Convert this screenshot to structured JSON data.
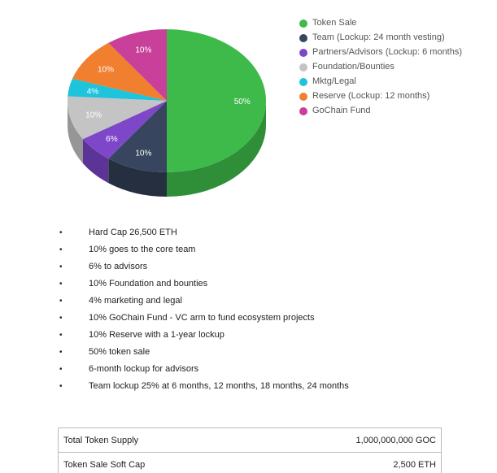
{
  "chart_data": {
    "type": "pie",
    "style": "3d",
    "slices": [
      {
        "name": "Token Sale",
        "value": 50,
        "label": "50%",
        "color": "#3eba4a",
        "side_color": "#2f8f39"
      },
      {
        "name": "Team (Lockup: 24 month vesting)",
        "value": 10,
        "label": "10%",
        "color": "#37455e",
        "side_color": "#262f40"
      },
      {
        "name": "Partners/Advisors (Lockup: 6 months)",
        "value": 6,
        "label": "6%",
        "color": "#7e47c9",
        "side_color": "#5c3396"
      },
      {
        "name": "Foundation/Bounties",
        "value": 10,
        "label": "10%",
        "color": "#c4c4c4",
        "side_color": "#969696"
      },
      {
        "name": "Mktg/Legal",
        "value": 4,
        "label": "4%",
        "color": "#1ec3dc",
        "side_color": "#1693a6"
      },
      {
        "name": "Reserve (Lockup: 12 months)",
        "value": 10,
        "label": "10%",
        "color": "#f07f30",
        "side_color": "#b55f24"
      },
      {
        "name": "GoChain Fund",
        "value": 10,
        "label": "10%",
        "color": "#c8409a",
        "side_color": "#932f71"
      }
    ],
    "legend_position": "right"
  },
  "legend": [
    {
      "label": "Token Sale",
      "color": "#3eba4a"
    },
    {
      "label": "Team (Lockup: 24 month vesting)",
      "color": "#37455e"
    },
    {
      "label": "Partners/Advisors (Lockup: 6 months)",
      "color": "#7e47c9"
    },
    {
      "label": "Foundation/Bounties",
      "color": "#c4c4c4"
    },
    {
      "label": "Mktg/Legal",
      "color": "#1ec3dc"
    },
    {
      "label": "Reserve (Lockup: 12 months)",
      "color": "#f07f30"
    },
    {
      "label": "GoChain Fund",
      "color": "#c8409a"
    }
  ],
  "bullets": {
    "marker": "•",
    "items": [
      "Hard Cap 26,500 ETH",
      "10% goes to the core team",
      "6% to advisors",
      "10% Foundation and bounties",
      "4% marketing and legal",
      "10% GoChain Fund - VC arm to fund ecosystem projects",
      "10% Reserve with a 1-year lockup",
      "50% token sale",
      "6-month lockup for advisors",
      "Team lockup 25% at 6 months, 12 months, 18 months, 24 months"
    ]
  },
  "table": {
    "rows": [
      {
        "label": "Total Token Supply",
        "value": "1,000,000,000 GOC"
      },
      {
        "label": "Token Sale Soft Cap",
        "value": "2,500 ETH"
      }
    ]
  }
}
